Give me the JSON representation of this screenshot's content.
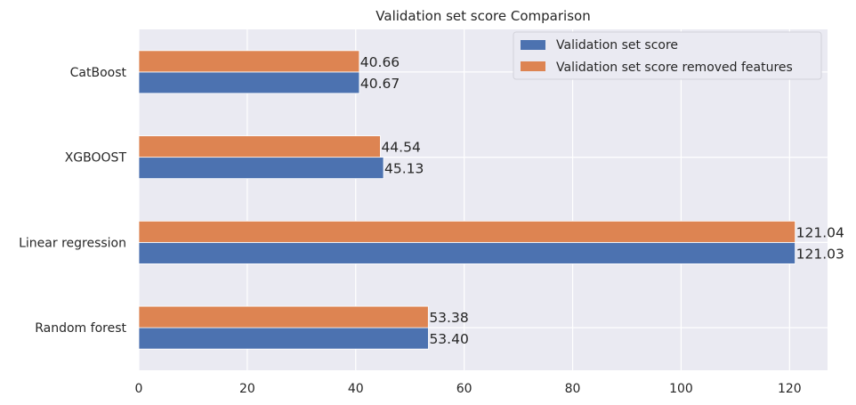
{
  "chart_data": {
    "type": "bar",
    "orientation": "horizontal",
    "title": "Validation set score Comparison",
    "xlabel": "",
    "ylabel": "",
    "categories": [
      "Random forest",
      "Linear regression",
      "XGBOOST",
      "CatBoost"
    ],
    "series": [
      {
        "name": "Validation set score",
        "color": "#4c72b0",
        "values": [
          53.4,
          121.03,
          45.13,
          40.67
        ],
        "labels": [
          "53.40",
          "121.03",
          "45.13",
          "40.67"
        ]
      },
      {
        "name": "Validation set score removed features",
        "color": "#dd8452",
        "values": [
          53.38,
          121.04,
          44.54,
          40.66
        ],
        "labels": [
          "53.38",
          "121.04",
          "44.54",
          "40.66"
        ]
      }
    ],
    "xlim": [
      0,
      127
    ],
    "xticks": [
      0,
      20,
      40,
      60,
      80,
      100,
      120
    ],
    "xtick_labels": [
      "0",
      "20",
      "40",
      "60",
      "80",
      "100",
      "120"
    ],
    "grid": true,
    "legend_position": "top-right",
    "background": "#eaeaf2"
  }
}
